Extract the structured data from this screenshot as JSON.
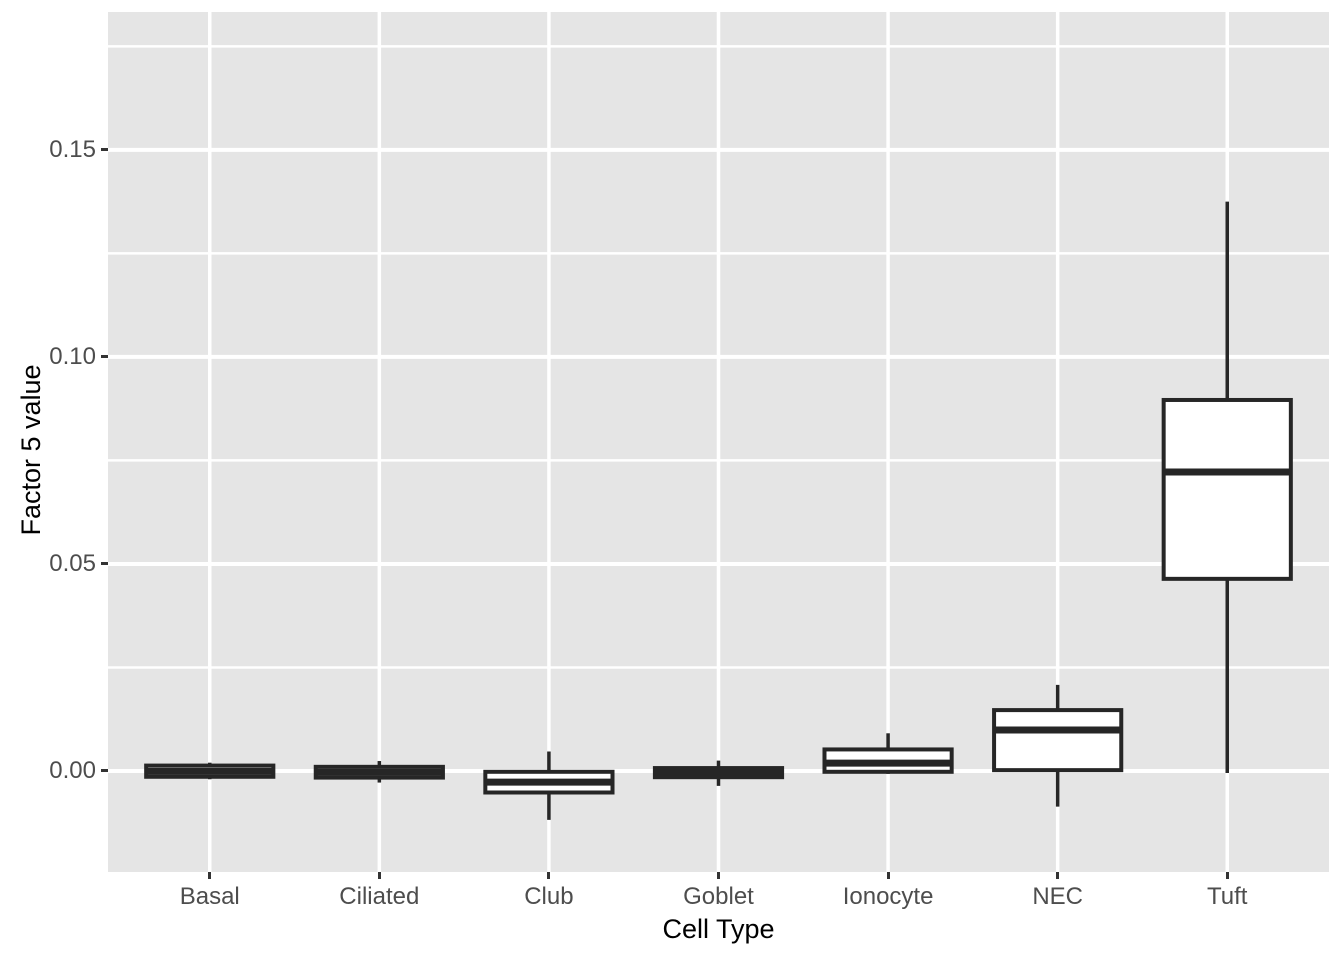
{
  "chart_data": {
    "type": "boxplot",
    "title": "",
    "xlabel": "Cell Type",
    "ylabel": "Factor 5 value",
    "categories": [
      "Basal",
      "Ciliated",
      "Club",
      "Goblet",
      "Ionocyte",
      "NEC",
      "Tuft"
    ],
    "series": [
      {
        "name": "Basal",
        "whisker_low": -0.002,
        "q1": -0.0014,
        "median": -0.0001,
        "q3": 0.0013,
        "whisker_high": 0.002
      },
      {
        "name": "Ciliated",
        "whisker_low": -0.0028,
        "q1": -0.0016,
        "median": -0.0003,
        "q3": 0.001,
        "whisker_high": 0.0024
      },
      {
        "name": "Club",
        "whisker_low": -0.0118,
        "q1": -0.0052,
        "median": -0.0027,
        "q3": -0.0002,
        "whisker_high": 0.0047
      },
      {
        "name": "Goblet",
        "whisker_low": -0.0036,
        "q1": -0.0015,
        "median": -0.0006,
        "q3": 0.0007,
        "whisker_high": 0.0025
      },
      {
        "name": "Ionocyte",
        "whisker_low": -0.0007,
        "q1": -0.0002,
        "median": 0.0019,
        "q3": 0.0052,
        "whisker_high": 0.0091
      },
      {
        "name": "NEC",
        "whisker_low": -0.0086,
        "q1": 0.0002,
        "median": 0.0099,
        "q3": 0.0147,
        "whisker_high": 0.0208
      },
      {
        "name": "Tuft",
        "whisker_low": -0.0005,
        "q1": 0.0464,
        "median": 0.0722,
        "q3": 0.0896,
        "whisker_high": 0.1375
      }
    ],
    "y_ticks": [
      {
        "value": 0.0,
        "label": "0.00"
      },
      {
        "value": 0.05,
        "label": "0.05"
      },
      {
        "value": 0.1,
        "label": "0.10"
      },
      {
        "value": 0.15,
        "label": "0.15"
      }
    ],
    "ylim": [
      -0.0244,
      0.1833
    ],
    "grid": {
      "major": true,
      "minor": true,
      "gridline_color": "#FFFFFF"
    },
    "legend": "none",
    "colors": {
      "panel_bg": "#E5E5E5",
      "box_border": "#262626",
      "box_fill": "#FFFFFF",
      "whisker": "#262626",
      "tick_mark": "#333333",
      "tick_text": "#4D4D4D",
      "title_text": "#000000",
      "figure_bg": "#FFFFFF"
    }
  }
}
